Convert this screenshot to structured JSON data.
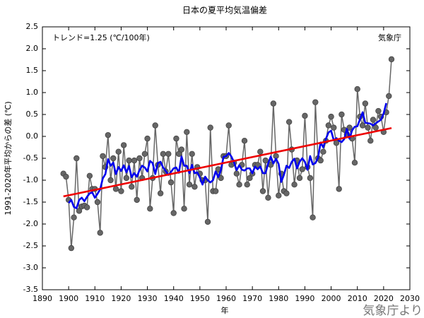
{
  "chart_data": {
    "type": "line",
    "title": "日本の夏平均気温偏差",
    "annotation": "トレンド=1.25 (℃/100年)",
    "source_inside": "気象庁",
    "source_outside": "気象庁より",
    "xlabel": "年",
    "ylabel": "1991-2020年平均からの差 (℃)",
    "xlim": [
      1890,
      2030
    ],
    "xticks": [
      1890,
      1900,
      1910,
      1920,
      1930,
      1940,
      1950,
      1960,
      1970,
      1980,
      1990,
      2000,
      2010,
      2020,
      2030
    ],
    "ylim": [
      -3.5,
      2.5
    ],
    "yticks": [
      2.5,
      {
        "value": 2,
        "label": "2.0"
      },
      1.5,
      {
        "value": 1,
        "label": "1.0"
      },
      0.5,
      {
        "value": 0,
        "label": "0.0"
      },
      -0.5,
      {
        "value": -1,
        "label": "-1.0"
      },
      -1.5,
      {
        "value": -2,
        "label": "-2.0"
      },
      -2.5,
      {
        "value": -3,
        "label": "-3.0"
      },
      -3.5
    ],
    "series": [
      {
        "color": "#666666",
        "markers": true,
        "x": [
          1898,
          1899,
          1900,
          1901,
          1902,
          1903,
          1904,
          1905,
          1906,
          1907,
          1908,
          1909,
          1910,
          1911,
          1912,
          1913,
          1914,
          1915,
          1916,
          1917,
          1918,
          1919,
          1920,
          1921,
          1922,
          1923,
          1924,
          1925,
          1926,
          1927,
          1928,
          1929,
          1930,
          1931,
          1932,
          1933,
          1934,
          1935,
          1936,
          1937,
          1938,
          1939,
          1940,
          1941,
          1942,
          1943,
          1944,
          1945,
          1946,
          1947,
          1948,
          1949,
          1950,
          1951,
          1952,
          1953,
          1954,
          1955,
          1956,
          1957,
          1958,
          1959,
          1960,
          1961,
          1962,
          1963,
          1964,
          1965,
          1966,
          1967,
          1968,
          1969,
          1970,
          1971,
          1972,
          1973,
          1974,
          1975,
          1976,
          1977,
          1978,
          1979,
          1980,
          1981,
          1982,
          1983,
          1984,
          1985,
          1986,
          1987,
          1988,
          1989,
          1990,
          1991,
          1992,
          1993,
          1994,
          1995,
          1996,
          1997,
          1998,
          1999,
          2000,
          2001,
          2002,
          2003,
          2004,
          2005,
          2006,
          2007,
          2008,
          2009,
          2010,
          2011,
          2012,
          2013,
          2014,
          2015,
          2016,
          2017,
          2018,
          2019,
          2020,
          2021,
          2022,
          2023
        ],
        "values": [
          -0.85,
          -0.92,
          -1.45,
          -2.55,
          -1.85,
          -0.5,
          -1.7,
          -1.6,
          -1.58,
          -1.62,
          -0.9,
          -1.2,
          -1.2,
          -1.5,
          -2.2,
          -0.45,
          -0.7,
          0.03,
          -1.0,
          -0.5,
          -1.2,
          -0.35,
          -1.25,
          -0.2,
          -0.95,
          -0.55,
          -1.15,
          -0.55,
          -1.45,
          -0.5,
          -0.95,
          -0.4,
          -0.05,
          -1.65,
          -0.95,
          0.25,
          -0.65,
          -1.3,
          -0.4,
          -0.8,
          -0.4,
          -1.05,
          -1.75,
          -0.05,
          -0.4,
          -0.3,
          -1.65,
          0.1,
          -1.1,
          -0.4,
          -1.15,
          -0.7,
          -0.85,
          -1.0,
          -1.0,
          -1.95,
          0.2,
          -1.25,
          -1.25,
          -0.75,
          -0.95,
          -0.45,
          -0.45,
          0.25,
          -0.65,
          -0.6,
          -0.85,
          -1.1,
          -0.65,
          -0.1,
          -1.1,
          -0.95,
          -0.85,
          -0.65,
          -0.65,
          -0.35,
          -1.25,
          -0.55,
          -1.4,
          -0.65,
          0.75,
          -0.45,
          -1.35,
          -0.85,
          -1.25,
          -1.3,
          0.33,
          -0.3,
          -1.1,
          -0.55,
          -0.95,
          -0.75,
          0.47,
          -0.7,
          -0.95,
          -1.85,
          0.78,
          -0.5,
          -0.55,
          -0.35,
          -0.1,
          0.25,
          0.45,
          0.2,
          -0.15,
          -1.2,
          0.5,
          0.15,
          0.05,
          0.2,
          -0.05,
          -0.6,
          1.08,
          0.45,
          0.25,
          0.75,
          0.2,
          -0.1,
          0.38,
          0.2,
          0.58,
          0.45,
          0.1,
          0.55,
          0.92,
          1.76
        ]
      },
      {
        "color": "#0000ee",
        "markers": false,
        "x": [
          1900,
          1901,
          1902,
          1903,
          1904,
          1905,
          1906,
          1907,
          1908,
          1909,
          1910,
          1911,
          1912,
          1913,
          1914,
          1915,
          1916,
          1917,
          1918,
          1919,
          1920,
          1921,
          1922,
          1923,
          1924,
          1925,
          1926,
          1927,
          1928,
          1929,
          1930,
          1931,
          1932,
          1933,
          1934,
          1935,
          1936,
          1937,
          1938,
          1939,
          1940,
          1941,
          1942,
          1943,
          1944,
          1945,
          1946,
          1947,
          1948,
          1949,
          1950,
          1951,
          1952,
          1953,
          1954,
          1955,
          1956,
          1957,
          1958,
          1959,
          1960,
          1961,
          1962,
          1963,
          1964,
          1965,
          1966,
          1967,
          1968,
          1969,
          1970,
          1971,
          1972,
          1973,
          1974,
          1975,
          1976,
          1977,
          1978,
          1979,
          1980,
          1981,
          1982,
          1983,
          1984,
          1985,
          1986,
          1987,
          1988,
          1989,
          1990,
          1991,
          1992,
          1993,
          1994,
          1995,
          1996,
          1997,
          1998,
          1999,
          2000,
          2001,
          2002,
          2003,
          2004,
          2005,
          2006,
          2007,
          2008,
          2009,
          2010,
          2011,
          2012,
          2013,
          2014,
          2015,
          2016,
          2017,
          2018,
          2019,
          2020,
          2021
        ],
        "values": [
          -1.52,
          -1.45,
          -1.61,
          -1.64,
          -1.45,
          -1.4,
          -1.48,
          -1.38,
          -1.3,
          -1.28,
          -1.4,
          -1.31,
          -1.21,
          -0.96,
          -0.86,
          -0.52,
          -0.67,
          -0.6,
          -0.86,
          -0.7,
          -0.79,
          -0.66,
          -0.82,
          -0.68,
          -0.93,
          -0.84,
          -0.92,
          -0.77,
          -0.67,
          -0.71,
          -0.8,
          -0.56,
          -0.61,
          -0.86,
          -0.61,
          -0.58,
          -0.71,
          -0.79,
          -0.88,
          -0.81,
          -0.73,
          -0.71,
          -0.83,
          -0.46,
          -0.67,
          -0.67,
          -0.84,
          -0.65,
          -0.84,
          -0.82,
          -0.94,
          -1.1,
          -0.92,
          -1.0,
          -1.05,
          -1.0,
          -0.8,
          -0.93,
          -0.77,
          -0.47,
          -0.45,
          -0.38,
          -0.46,
          -0.59,
          -0.77,
          -0.66,
          -0.76,
          -0.78,
          -0.73,
          -0.73,
          -0.84,
          -0.69,
          -0.75,
          -0.69,
          -0.84,
          -0.84,
          -0.62,
          -0.46,
          -0.62,
          -0.51,
          -0.63,
          -1.04,
          -0.88,
          -0.67,
          -0.72,
          -0.58,
          -0.51,
          -0.73,
          -0.58,
          -0.5,
          -0.58,
          -0.76,
          -0.45,
          -0.64,
          -0.61,
          -0.49,
          -0.14,
          -0.25,
          -0.06,
          0.09,
          0.13,
          -0.09,
          -0.04,
          -0.1,
          -0.13,
          -0.06,
          0.17,
          -0.05,
          0.14,
          0.22,
          0.23,
          0.39,
          0.55,
          0.31,
          0.3,
          0.29,
          0.25,
          0.3,
          0.34,
          0.38,
          0.52,
          0.76
        ]
      },
      {
        "color": "#ee0000",
        "markers": false,
        "x": [
          1898,
          2023
        ],
        "values": [
          -1.37,
          0.19
        ]
      }
    ]
  }
}
